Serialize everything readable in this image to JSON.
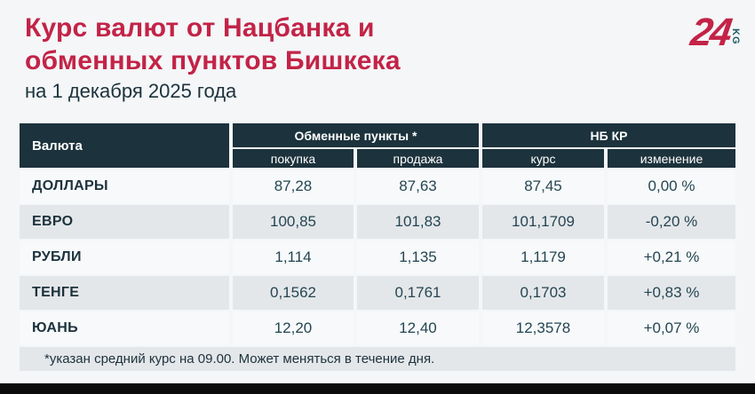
{
  "page": {
    "title_line1": "Курс валют от Нацбанка и",
    "title_line2": "обменных пунктов Бишкека",
    "subtitle": "на 1 декабря 2025 года",
    "footnote": "*указан средний курс на 09.00. Может меняться в течение дня."
  },
  "logo": {
    "number": "24",
    "suffix": "KG"
  },
  "colors": {
    "accent_red": "#c32347",
    "header_navy": "#1c323c",
    "row_alt_gray": "#e4e7ea",
    "logo_teal": "#1b5b60"
  },
  "table": {
    "col_currency": "Валюта",
    "group_exchange": "Обменные пункты *",
    "group_nbkr": "НБ КР",
    "sub_buy": "покупка",
    "sub_sell": "продажа",
    "sub_rate": "курс",
    "sub_change": "изменение",
    "rows": [
      {
        "name": "ДОЛЛАРЫ",
        "buy": "87,28",
        "sell": "87,63",
        "rate": "87,45",
        "change": "0,00 %"
      },
      {
        "name": "ЕВРО",
        "buy": "100,85",
        "sell": "101,83",
        "rate": "101,1709",
        "change": "-0,20 %"
      },
      {
        "name": "РУБЛИ",
        "buy": "1,114",
        "sell": "1,135",
        "rate": "1,1179",
        "change": "+0,21 %"
      },
      {
        "name": "ТЕНГЕ",
        "buy": "0,1562",
        "sell": "0,1761",
        "rate": "0,1703",
        "change": "+0,83 %"
      },
      {
        "name": "ЮАНЬ",
        "buy": "12,20",
        "sell": "12,40",
        "rate": "12,3578",
        "change": "+0,07 %"
      }
    ]
  },
  "chart_data": {
    "type": "table",
    "title": "Курс валют от Нацбанка и обменных пунктов Бишкека",
    "subtitle": "на 1 декабря 2025 года",
    "column_groups": [
      "",
      "Обменные пункты *",
      "НБ КР"
    ],
    "columns": [
      "Валюта",
      "покупка",
      "продажа",
      "курс",
      "изменение"
    ],
    "rows": [
      [
        "ДОЛЛАРЫ",
        87.28,
        87.63,
        87.45,
        "0,00 %"
      ],
      [
        "ЕВРО",
        100.85,
        101.83,
        101.1709,
        "-0,20 %"
      ],
      [
        "РУБЛИ",
        1.114,
        1.135,
        1.1179,
        "+0,21 %"
      ],
      [
        "ТЕНГЕ",
        0.1562,
        0.1761,
        0.1703,
        "+0,83 %"
      ],
      [
        "ЮАНЬ",
        12.2,
        12.4,
        12.3578,
        "+0,07 %"
      ]
    ],
    "footnote": "*указан средний курс на 09.00. Может меняться в течение дня."
  }
}
